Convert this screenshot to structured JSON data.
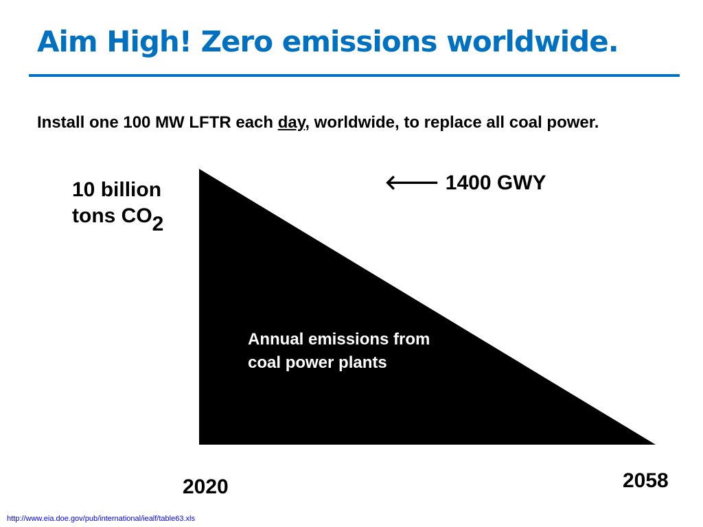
{
  "colors": {
    "title": "#0070C0",
    "rule": "#0070C0",
    "wedge": "#000000",
    "annotation_text": "#FFFFFF",
    "source_link": "#0000FF"
  },
  "slide": {
    "title": "Aim High! Zero emissions worldwide.",
    "subtitle": {
      "before": "Install one 100 MW LFTR each ",
      "emphasis": "day",
      "after": ", worldwide, to replace all coal power."
    },
    "y_label": {
      "line1": "10 billion",
      "line2": "tons CO",
      "subscript": "2"
    },
    "arrow_label": {
      "icon": "left-arrow-icon",
      "glyph": "🡐",
      "text": "1400 GWY"
    },
    "annotation": "Annual emissions from coal power plants",
    "year_start": "2020",
    "year_end": "2058",
    "source": "http://www.eia.doe.gov/pub/international/iealf/table63.xls"
  }
}
